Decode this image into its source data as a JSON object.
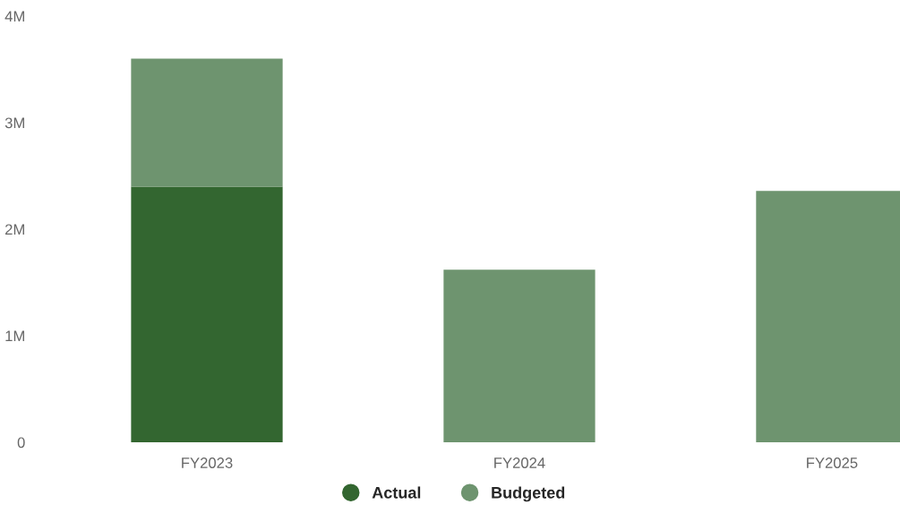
{
  "chart_data": {
    "type": "bar",
    "stacked": true,
    "categories": [
      "FY2023",
      "FY2024",
      "FY2025"
    ],
    "series": [
      {
        "name": "Actual",
        "color": "#336630",
        "values": [
          2.4,
          null,
          null
        ]
      },
      {
        "name": "Budgeted",
        "color": "#6e946f",
        "values": [
          1.2,
          1.62,
          2.36
        ]
      }
    ],
    "ylim": [
      0,
      4
    ],
    "yticks": [
      0,
      {
        "value": 1,
        "label": "1M"
      },
      {
        "value": 2,
        "label": "2M"
      },
      {
        "value": 3,
        "label": "3M"
      },
      {
        "value": 4,
        "label": "4M"
      }
    ],
    "grid": false,
    "legend": "bottom",
    "marker": "circle"
  }
}
